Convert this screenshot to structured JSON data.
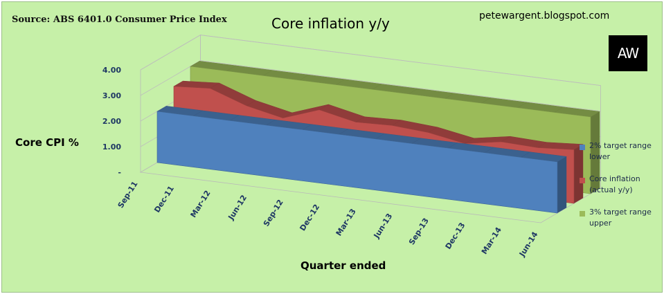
{
  "header": {
    "source": "Source: ABS 6401.0 Consumer Price Index",
    "blog": "petewargent.blogspot.com",
    "logo_text": "AW"
  },
  "chart_data": {
    "type": "area",
    "title": "Core inflation y/y",
    "xlabel": "Quarter ended",
    "ylabel": "Core CPI %",
    "categories": [
      "Sep-11",
      "Dec-11",
      "Mar-12",
      "Jun-12",
      "Sep-12",
      "Dec-12",
      "Mar-13",
      "Jun-13",
      "Sep-13",
      "Dec-13",
      "Mar-14",
      "Jun-14"
    ],
    "y_ticks": [
      "-",
      "1.00",
      "2.00",
      "3.00",
      "4.00"
    ],
    "ylim": [
      0,
      4
    ],
    "three_d": true,
    "series": [
      {
        "name": "2% target range lower",
        "color": "#4f81bd",
        "values": [
          2,
          2,
          2,
          2,
          2,
          2,
          2,
          2,
          2,
          2,
          2,
          2
        ]
      },
      {
        "name": "Core inflation (actual y/y)",
        "color": "#c0504d",
        "values": [
          2.6,
          2.7,
          2.2,
          1.9,
          2.4,
          2.1,
          2.15,
          2.05,
          1.8,
          2.05,
          2.0,
          2.1
        ]
      },
      {
        "name": "3% target range upper",
        "color": "#9bbb59",
        "values": [
          3,
          3,
          3,
          3,
          3,
          3,
          3,
          3,
          3,
          3,
          3,
          3
        ]
      }
    ],
    "legend_position": "right"
  }
}
